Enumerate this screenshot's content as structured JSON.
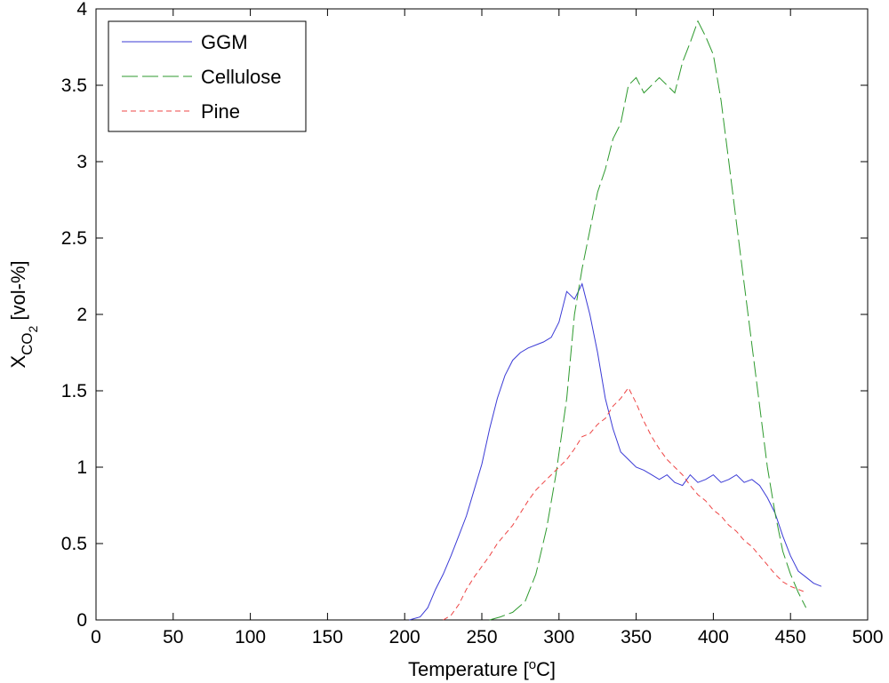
{
  "chart_data": {
    "type": "line",
    "xlabel_main": "Temperature [",
    "xlabel_degree": "o",
    "xlabel_unit": "C]",
    "ylabel_main": "X",
    "ylabel_sub_co": "CO",
    "ylabel_sub_2": "2",
    "ylabel_unit": " [vol-%]",
    "xlim": [
      0,
      500
    ],
    "ylim": [
      0,
      4
    ],
    "x_ticks": [
      0,
      50,
      100,
      150,
      200,
      250,
      300,
      350,
      400,
      450,
      500
    ],
    "y_ticks": [
      0,
      0.5,
      1,
      1.5,
      2,
      2.5,
      3,
      3.5,
      4
    ],
    "x_tick_labels": [
      "0",
      "50",
      "100",
      "150",
      "200",
      "250",
      "300",
      "350",
      "400",
      "450",
      "500"
    ],
    "y_tick_labels": [
      "0",
      "0.5",
      "1",
      "1.5",
      "2",
      "2.5",
      "3",
      "3.5",
      "4"
    ],
    "grid": false,
    "legend_position": "top-left",
    "series": [
      {
        "name": "GGM",
        "color": "#3b3bd6",
        "dash": "",
        "x": [
          203,
          210,
          215,
          220,
          225,
          230,
          235,
          240,
          245,
          250,
          255,
          260,
          265,
          270,
          275,
          280,
          285,
          290,
          295,
          300,
          305,
          310,
          315,
          320,
          325,
          330,
          335,
          340,
          345,
          350,
          355,
          360,
          365,
          370,
          375,
          380,
          385,
          390,
          395,
          400,
          405,
          410,
          415,
          420,
          425,
          430,
          435,
          440,
          445,
          450,
          455,
          460,
          465,
          470
        ],
        "y": [
          0.0,
          0.02,
          0.08,
          0.2,
          0.3,
          0.42,
          0.55,
          0.68,
          0.85,
          1.02,
          1.25,
          1.45,
          1.6,
          1.7,
          1.75,
          1.78,
          1.8,
          1.82,
          1.85,
          1.95,
          2.15,
          2.1,
          2.2,
          2.0,
          1.75,
          1.45,
          1.25,
          1.1,
          1.05,
          1.0,
          0.98,
          0.95,
          0.92,
          0.95,
          0.9,
          0.88,
          0.95,
          0.9,
          0.92,
          0.95,
          0.9,
          0.92,
          0.95,
          0.9,
          0.92,
          0.88,
          0.8,
          0.7,
          0.55,
          0.42,
          0.32,
          0.28,
          0.24,
          0.22
        ]
      },
      {
        "name": "Cellulose",
        "color": "#2e9a2e",
        "dash": "18 5",
        "x": [
          255,
          262,
          270,
          278,
          285,
          292,
          298,
          305,
          310,
          315,
          320,
          325,
          330,
          335,
          340,
          345,
          350,
          355,
          360,
          365,
          370,
          375,
          380,
          385,
          390,
          395,
          400,
          405,
          410,
          415,
          420,
          425,
          430,
          435,
          440,
          445,
          450,
          455,
          460
        ],
        "y": [
          0.0,
          0.02,
          0.05,
          0.12,
          0.3,
          0.6,
          0.95,
          1.45,
          2.0,
          2.3,
          2.55,
          2.8,
          2.95,
          3.15,
          3.25,
          3.5,
          3.55,
          3.45,
          3.5,
          3.55,
          3.5,
          3.45,
          3.65,
          3.78,
          3.92,
          3.82,
          3.7,
          3.4,
          3.0,
          2.6,
          2.2,
          1.8,
          1.4,
          1.0,
          0.7,
          0.45,
          0.3,
          0.18,
          0.08
        ]
      },
      {
        "name": "Pine",
        "color": "#ee4444",
        "dash": "6 4",
        "x": [
          225,
          230,
          235,
          240,
          245,
          250,
          255,
          260,
          265,
          270,
          275,
          280,
          285,
          290,
          295,
          300,
          305,
          310,
          315,
          320,
          325,
          330,
          335,
          340,
          345,
          350,
          355,
          360,
          365,
          370,
          375,
          380,
          385,
          390,
          395,
          400,
          405,
          410,
          415,
          420,
          425,
          430,
          435,
          440,
          445,
          450,
          455,
          460
        ],
        "y": [
          0.0,
          0.03,
          0.1,
          0.2,
          0.28,
          0.35,
          0.42,
          0.5,
          0.56,
          0.62,
          0.7,
          0.78,
          0.85,
          0.9,
          0.95,
          1.0,
          1.05,
          1.12,
          1.2,
          1.22,
          1.28,
          1.32,
          1.4,
          1.45,
          1.52,
          1.42,
          1.3,
          1.2,
          1.12,
          1.05,
          1.0,
          0.95,
          0.88,
          0.82,
          0.78,
          0.72,
          0.68,
          0.62,
          0.58,
          0.52,
          0.48,
          0.42,
          0.36,
          0.3,
          0.25,
          0.22,
          0.2,
          0.18
        ]
      }
    ]
  }
}
